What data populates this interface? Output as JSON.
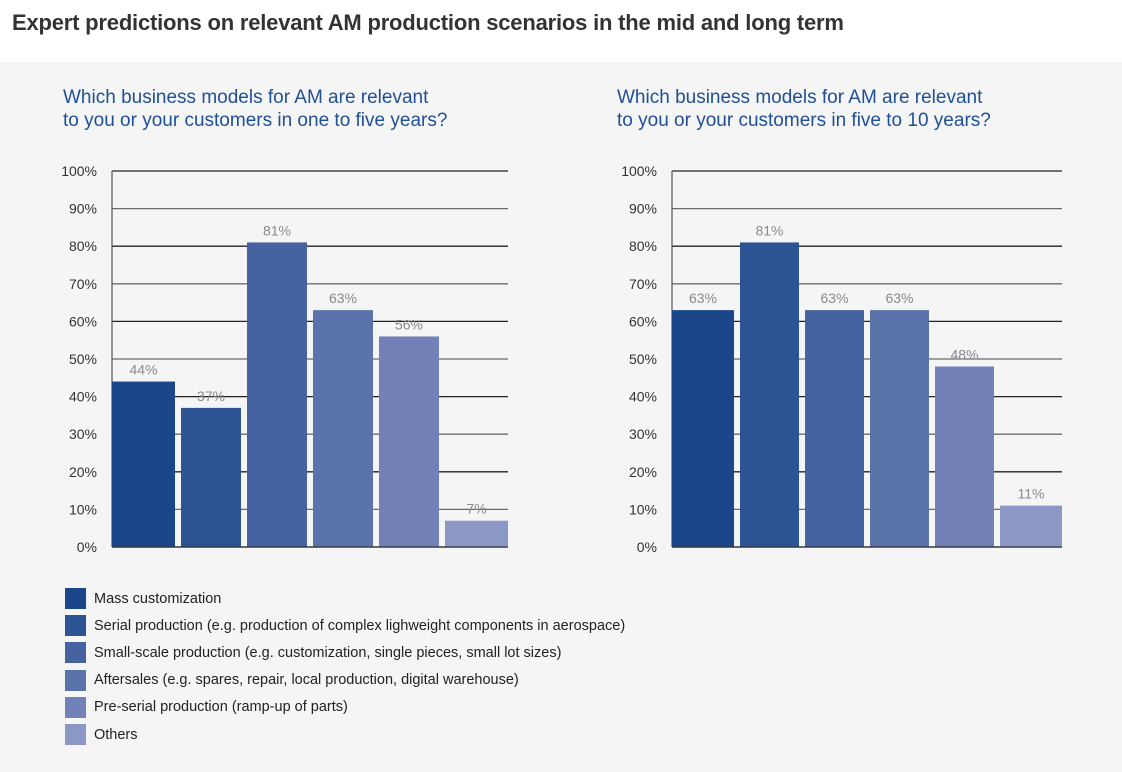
{
  "page": {
    "title": "Expert predictions on relevant AM production scenarios in the mid and long term"
  },
  "chart_data": [
    {
      "type": "bar",
      "title": "Which business models for AM are relevant to you or your customers in one to five years?",
      "title_lines": [
        "Which business models for AM are relevant",
        "to you or your customers in one to five years?"
      ],
      "categories": [
        "Mass customization",
        "Serial production",
        "Small-scale production",
        "Aftersales",
        "Pre-serial production",
        "Others"
      ],
      "values": [
        44,
        37,
        81,
        63,
        56,
        7
      ],
      "value_labels": [
        "44%",
        "37%",
        "81%",
        "63%",
        "56%",
        "7%"
      ],
      "ylim": [
        0,
        100
      ],
      "yticks": [
        "0%",
        "10%",
        "20%",
        "30%",
        "40%",
        "50%",
        "60%",
        "70%",
        "80%",
        "90%",
        "100%"
      ],
      "xlabel": "",
      "ylabel": "",
      "grid": true
    },
    {
      "type": "bar",
      "title": "Which business models for AM are relevant to you or your customers in five to 10 years?",
      "title_lines": [
        "Which business models for AM are relevant",
        "to you or your customers in five to 10 years?"
      ],
      "categories": [
        "Mass customization",
        "Serial production",
        "Small-scale production",
        "Aftersales",
        "Pre-serial production",
        "Others"
      ],
      "values": [
        63,
        81,
        63,
        63,
        48,
        11
      ],
      "value_labels": [
        "63%",
        "81%",
        "63%",
        "63%",
        "48%",
        "11%"
      ],
      "ylim": [
        0,
        100
      ],
      "yticks": [
        "0%",
        "10%",
        "20%",
        "30%",
        "40%",
        "50%",
        "60%",
        "70%",
        "80%",
        "90%",
        "100%"
      ],
      "xlabel": "",
      "ylabel": "",
      "grid": true
    }
  ],
  "legend": {
    "placement": "bottom-left",
    "items": [
      {
        "label": "Mass customization",
        "color": "#1b4689"
      },
      {
        "label": "Serial production  (e.g. production of complex lighweight components in aerospace)",
        "color": "#2c5393"
      },
      {
        "label": "Small-scale production  (e.g. customization, single pieces, small lot sizes)",
        "color": "#4563a0"
      },
      {
        "label": "Aftersales (e.g. spares, repair, local production, digital warehouse)",
        "color": "#5a73aa"
      },
      {
        "label": "Pre-serial production (ramp-up of parts)",
        "color": "#7282b8"
      },
      {
        "label": "Others",
        "color": "#8b98c5"
      }
    ]
  },
  "colors": {
    "title_blue": "#1f4f96",
    "gridline": "#333333",
    "data_label": "#8a8a8a"
  }
}
